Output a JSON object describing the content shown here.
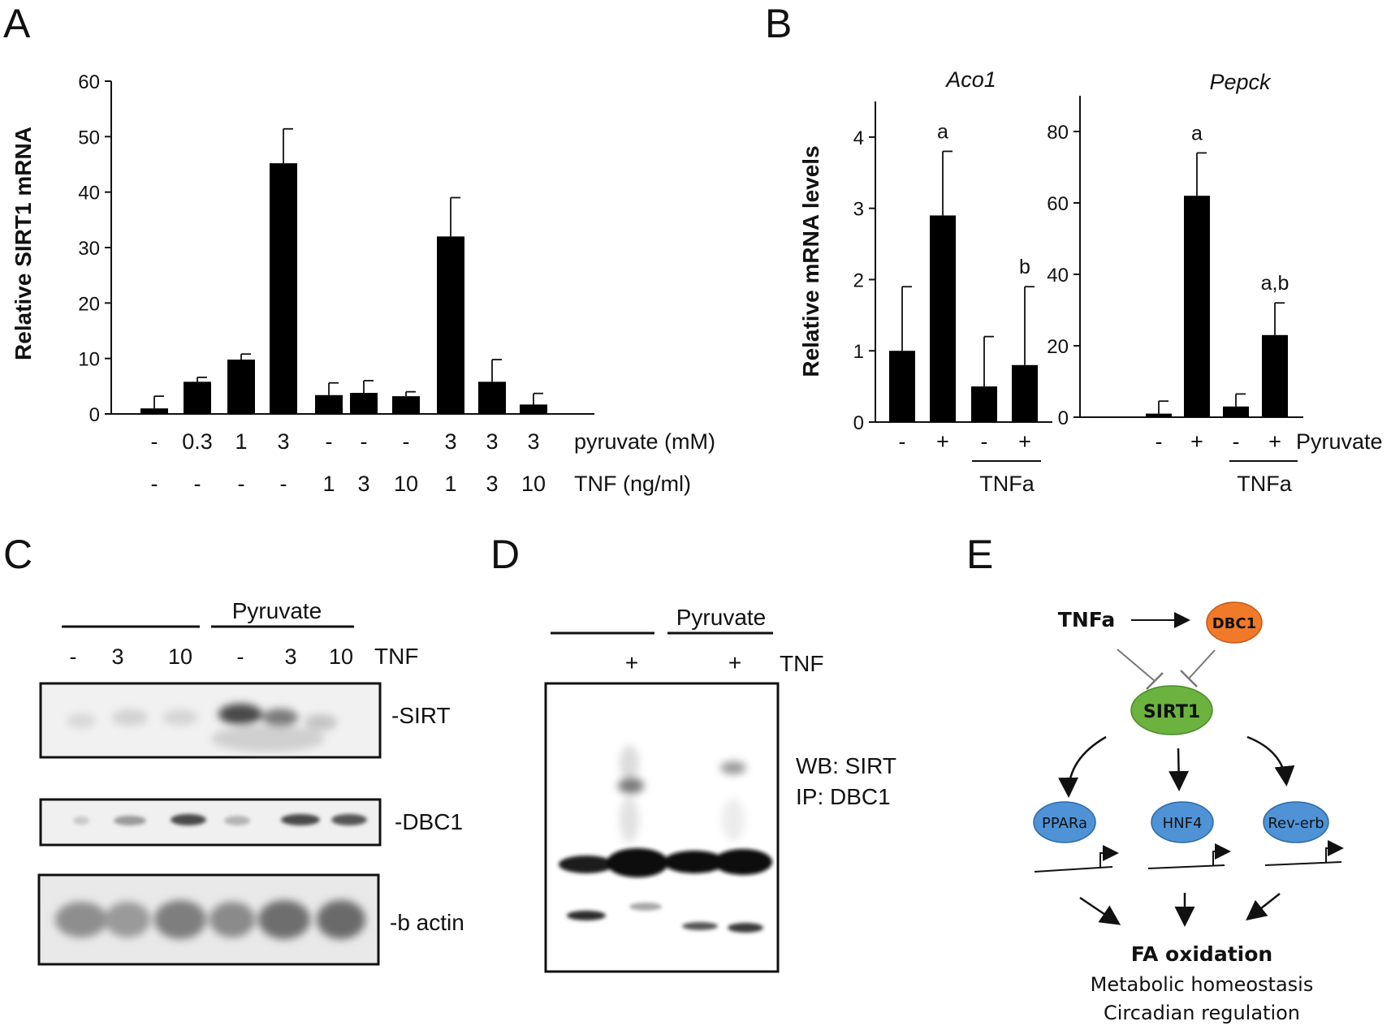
{
  "panels": {
    "A": "A",
    "B": "B",
    "C": "C",
    "D": "D",
    "E": "E"
  },
  "panel_a": {
    "ylabel": "Relative SIRT1 mRNA",
    "pyruvate_label": "pyruvate (mM)",
    "tnf_label": "TNF (ng/ml)",
    "pyruvate_row": [
      "-",
      "0.3",
      "1",
      "3",
      "-",
      "-",
      "-",
      "3",
      "3",
      "3"
    ],
    "tnf_row": [
      "-",
      "-",
      "-",
      "-",
      "1",
      "3",
      "10",
      "1",
      "3",
      "10"
    ]
  },
  "panel_b": {
    "ylabel": "Relative mRNA levels",
    "treatment_row": [
      "-",
      "+",
      "-",
      "+"
    ],
    "pyruvate_label": "Pyruvate",
    "tnfa_label": "TNFa"
  },
  "chart_data": [
    {
      "type": "bar",
      "panel": "A",
      "ylabel": "Relative SIRT1 mRNA",
      "categories": [
        "1",
        "2",
        "3",
        "4",
        "5",
        "6",
        "7",
        "8",
        "9",
        "10"
      ],
      "values": [
        1,
        5.8,
        9.8,
        45.2,
        3.4,
        3.8,
        3.2,
        32,
        5.8,
        1.7
      ],
      "errors": [
        2.2,
        0.8,
        1.0,
        6.2,
        2.2,
        2.2,
        0.8,
        7.0,
        4.0,
        2.0
      ],
      "yticks": [
        0,
        10,
        20,
        30,
        40,
        50,
        60
      ],
      "ylim": [
        0,
        60
      ]
    },
    {
      "type": "bar",
      "panel": "B",
      "title": "Aco1",
      "ylabel": "Relative mRNA levels",
      "categories": [
        "-",
        "+",
        "-",
        "+"
      ],
      "values": [
        1.0,
        2.9,
        0.5,
        0.8
      ],
      "errors": [
        0.9,
        0.9,
        0.7,
        1.1
      ],
      "annotations": [
        "",
        "a",
        "",
        "b"
      ],
      "yticks": [
        0,
        1,
        2,
        3,
        4
      ],
      "ylim": [
        0,
        4.5
      ]
    },
    {
      "type": "bar",
      "panel": "B",
      "title": "Pepck",
      "categories": [
        "-",
        "+",
        "-",
        "+"
      ],
      "values": [
        1.0,
        62,
        3.0,
        23
      ],
      "errors": [
        3.5,
        12,
        3.5,
        9
      ],
      "annotations": [
        "",
        "a",
        "",
        "a,b"
      ],
      "yticks": [
        0,
        20,
        40,
        60,
        80
      ],
      "ylim": [
        0,
        90
      ]
    }
  ],
  "panel_c": {
    "pyruvate_label": "Pyruvate",
    "tnf_label": "TNF",
    "lanes": [
      "-",
      "3",
      "10",
      "-",
      "3",
      "10"
    ],
    "blots": [
      "-SIRT",
      "-DBC1",
      "-b actin"
    ]
  },
  "panel_d": {
    "pyruvate_label": "Pyruvate",
    "tnf_label": "TNF",
    "lanes": [
      "+",
      "+"
    ],
    "wb_label": "WB: SIRT",
    "ip_label": "IP: DBC1"
  },
  "panel_e": {
    "tnfa": "TNFa",
    "dbc1": "DBC1",
    "sirt1": "SIRT1",
    "ppara": "PPARa",
    "hnf4": "HNF4",
    "reverb": "Rev-erb",
    "fa_oxidation": "FA oxidation",
    "line2": "Metabolic homeostasis",
    "line3": "Circadian regulation",
    "colors": {
      "dbc1": "#f07a2a",
      "sirt1": "#6bb33e",
      "targets": "#4f93d6"
    }
  }
}
